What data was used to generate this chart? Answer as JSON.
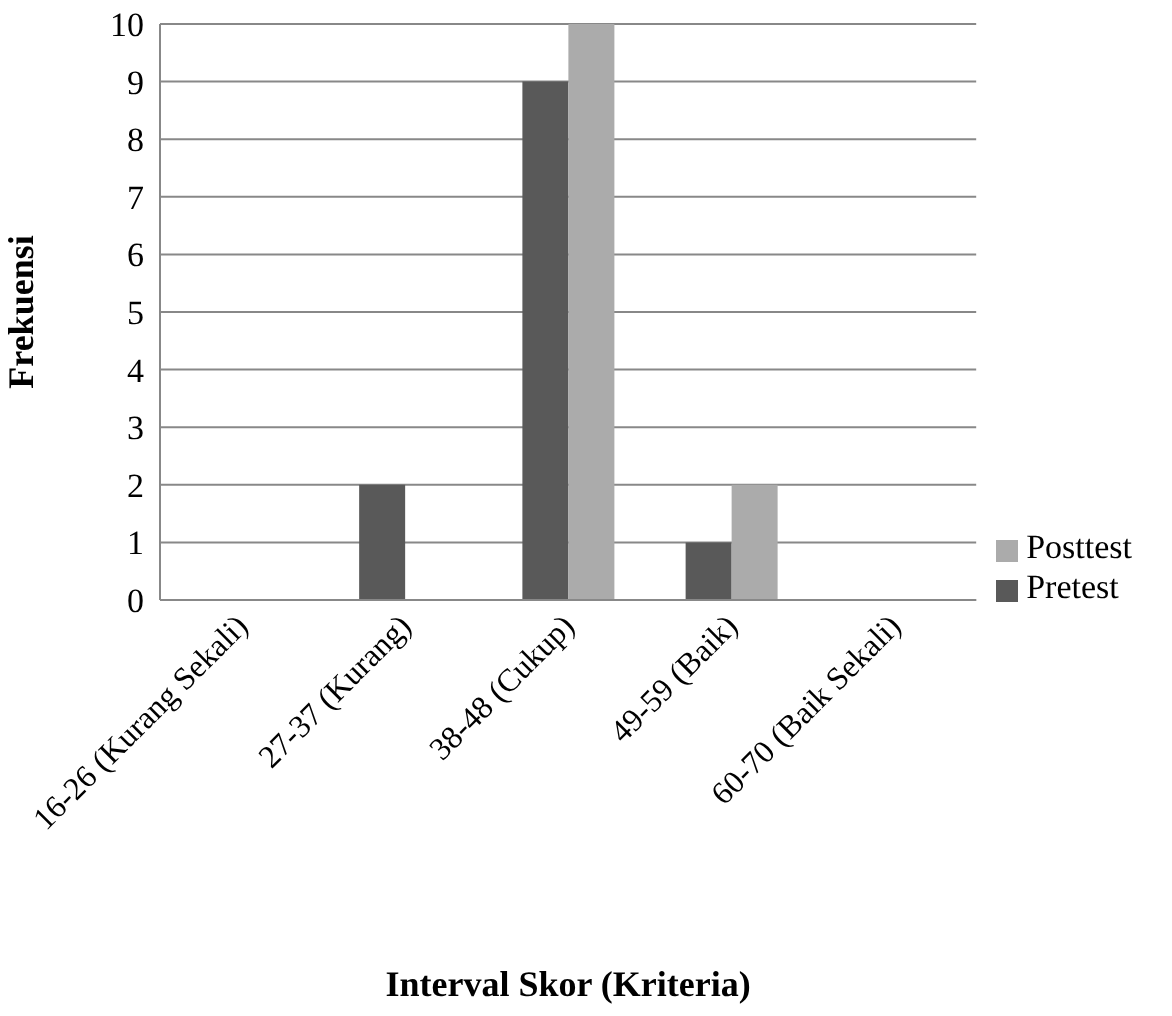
{
  "chart_data": {
    "type": "bar",
    "xlabel": "Interval Skor (Kriteria)",
    "ylabel": "Frekuensi",
    "categories": [
      "16-26 (Kurang Sekali)",
      "27-37 (Kurang)",
      "38-48 (Cukup)",
      "49-59 (Baik)",
      "60-70 (Baik Sekali)"
    ],
    "series": [
      {
        "name": "Pretest",
        "color": "#595959",
        "values": [
          0,
          2,
          9,
          1,
          0
        ]
      },
      {
        "name": "Posttest",
        "color": "#ababab",
        "values": [
          0,
          0,
          10,
          2,
          0
        ]
      }
    ],
    "ylim": [
      0,
      10
    ],
    "yticks": [
      0,
      1,
      2,
      3,
      4,
      5,
      6,
      7,
      8,
      9,
      10
    ],
    "grid": "y",
    "legend": "right"
  }
}
